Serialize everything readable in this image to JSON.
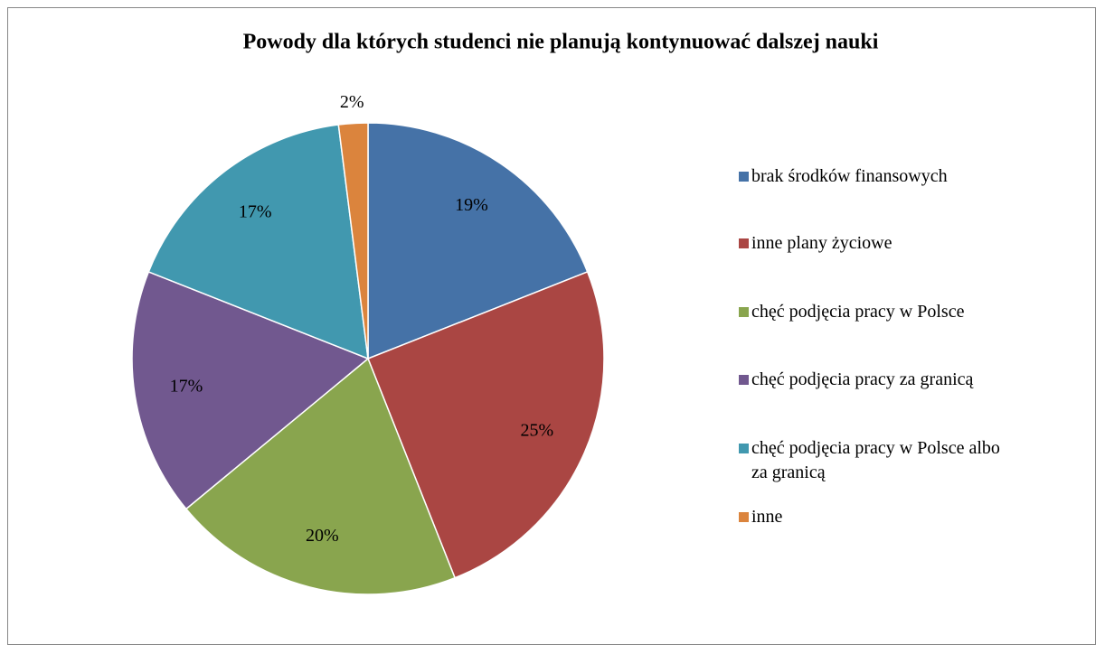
{
  "chart_data": {
    "type": "pie",
    "title": "Powody dla których studenci nie planują kontynuować dalszej nauki",
    "categories": [
      "brak środków finansowych",
      "inne plany życiowe",
      "chęć podjęcia pracy w Polsce",
      "chęć podjęcia pracy za granicą",
      "chęć podjęcia pracy w Polsce albo za granicą",
      "inne"
    ],
    "values": [
      19,
      25,
      20,
      17,
      17,
      2
    ],
    "value_labels": [
      "19%",
      "25%",
      "20%",
      "17%",
      "17%",
      "2%"
    ],
    "colors": [
      "#4572a7",
      "#aa4643",
      "#89a54e",
      "#71588f",
      "#4198af",
      "#db843d"
    ],
    "legend": "right"
  }
}
